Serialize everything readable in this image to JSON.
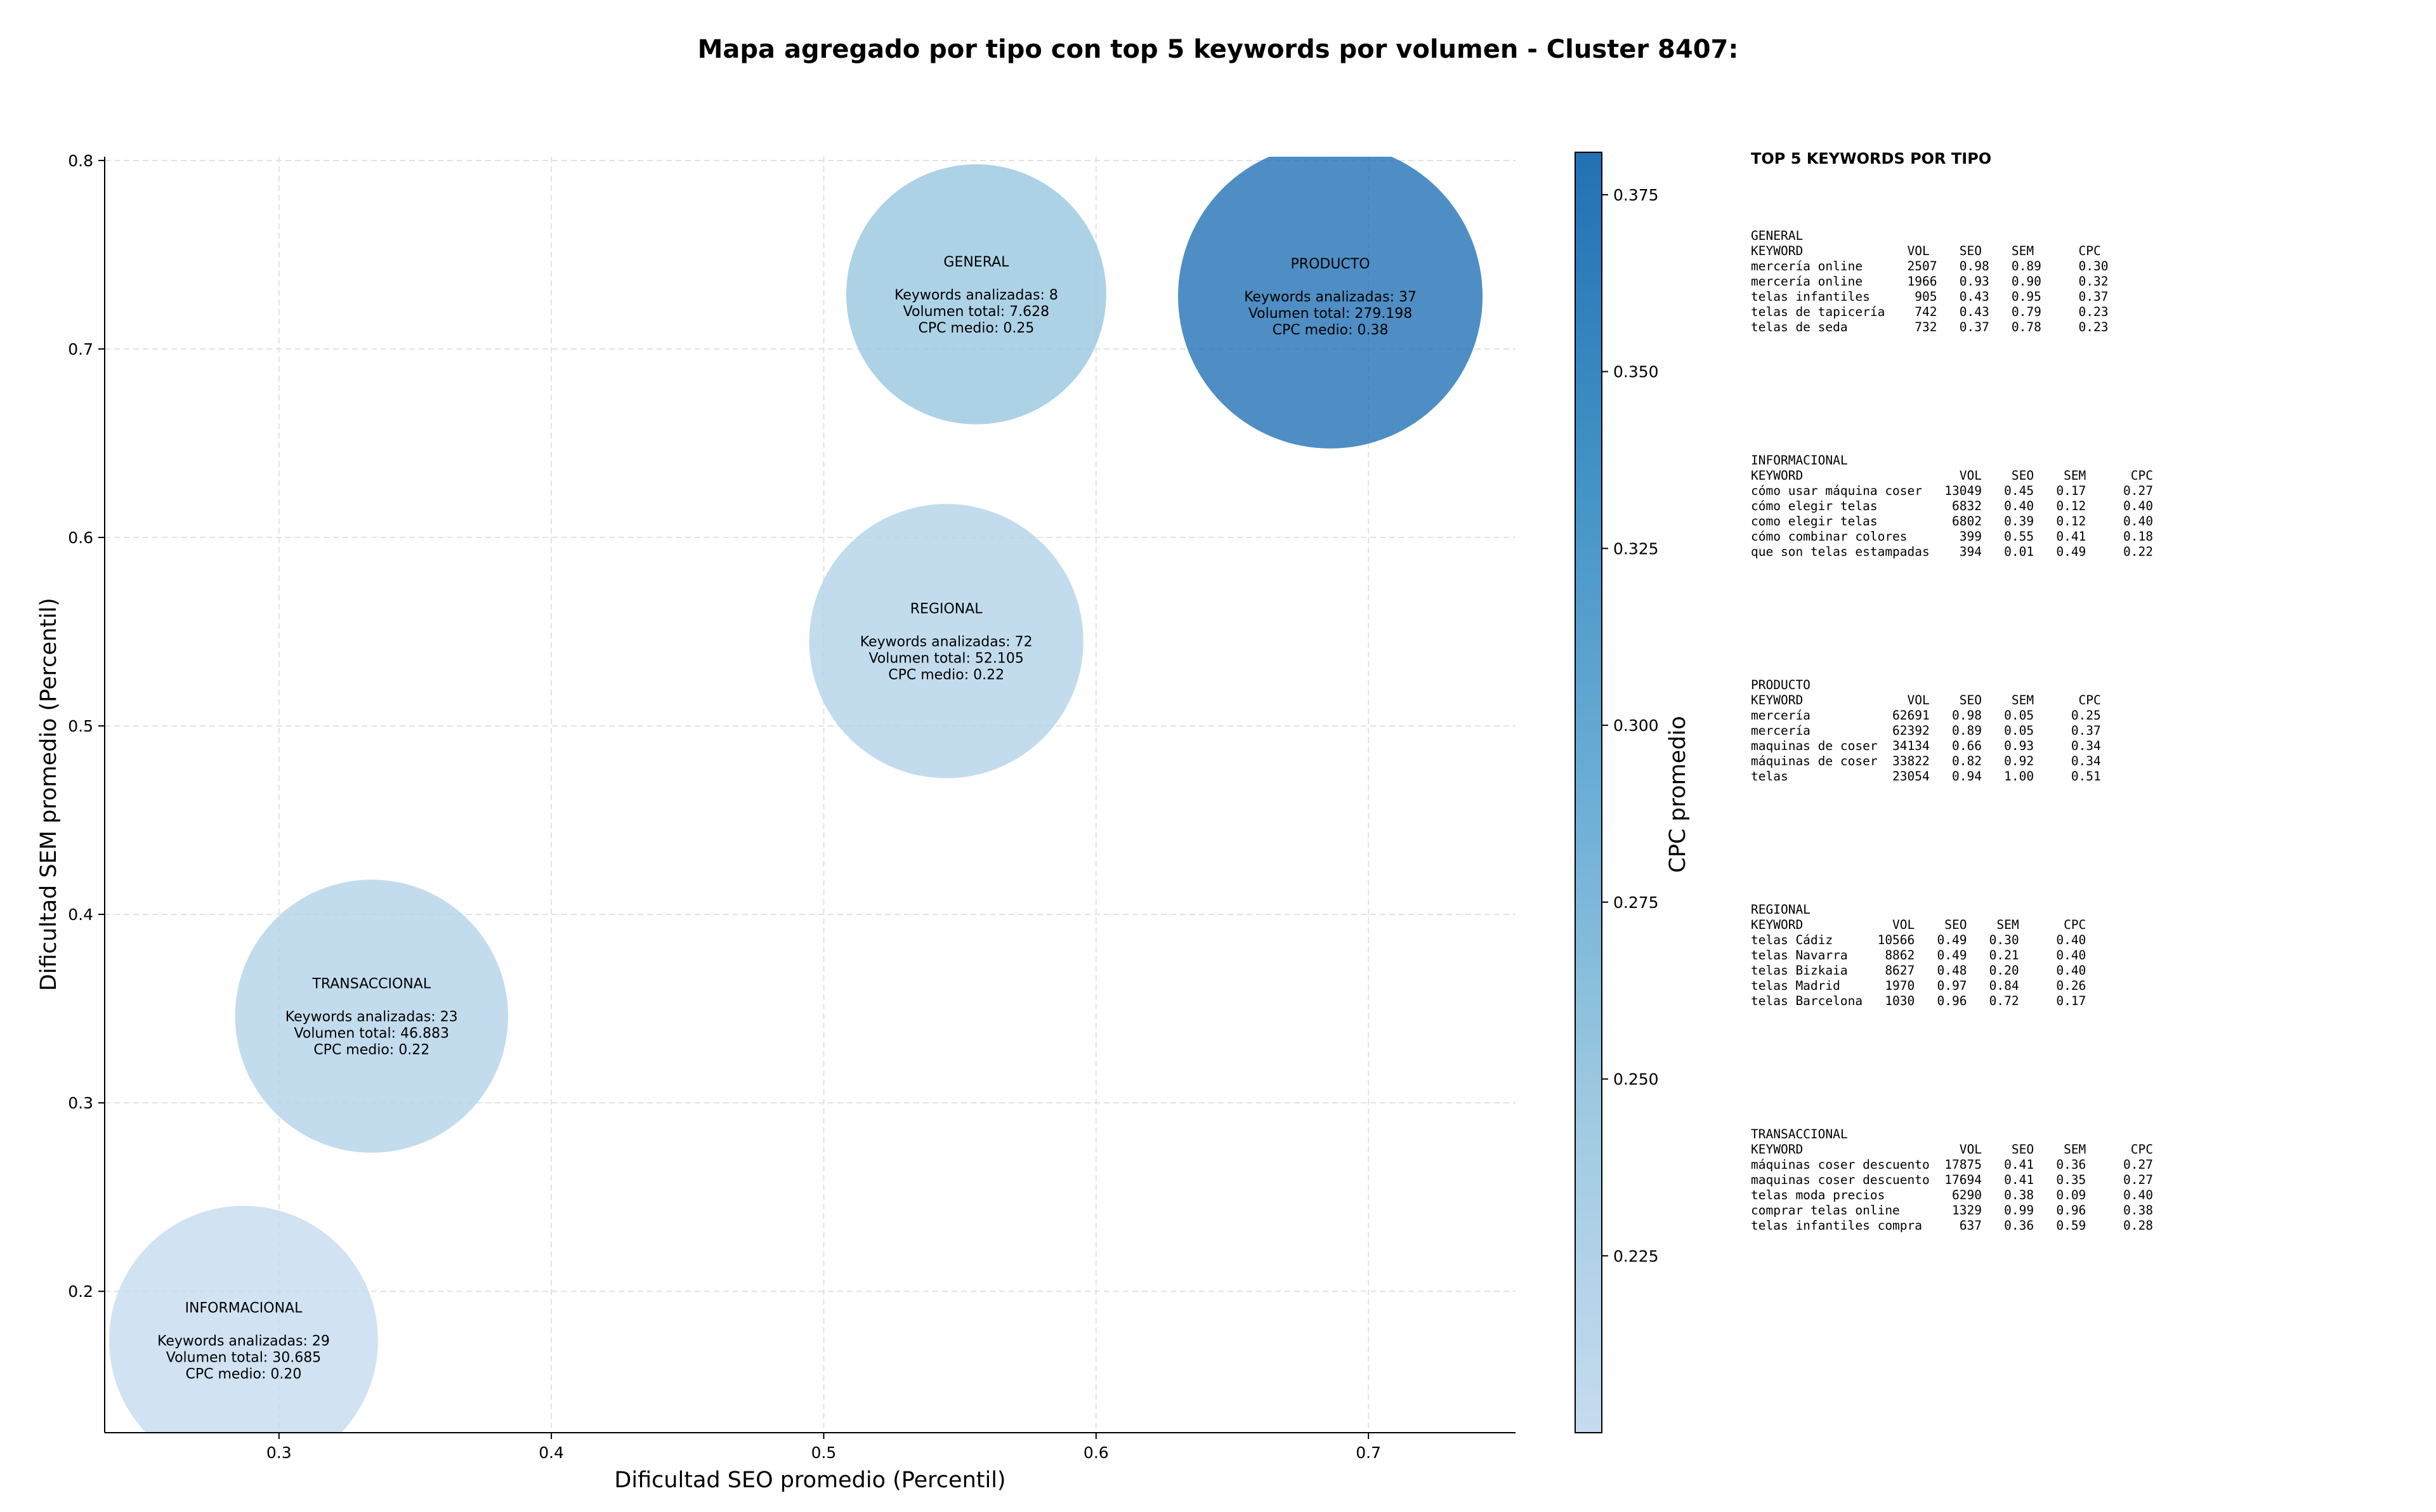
{
  "chart_data": {
    "type": "scatter",
    "title": "Mapa agregado por tipo con top 5 keywords por volumen - Cluster 8407:",
    "xlabel": "Dificultad SEO promedio (Percentil)",
    "ylabel": "Dificultad SEM promedio (Percentil)",
    "colorbar_label": "CPC promedio",
    "xlim": [
      0.236,
      0.754
    ],
    "ylim": [
      0.125,
      0.802
    ],
    "xticks": [
      "0.3",
      "0.4",
      "0.5",
      "0.6",
      "0.7"
    ],
    "yticks": [
      "0.2",
      "0.3",
      "0.4",
      "0.5",
      "0.6",
      "0.7",
      "0.8"
    ],
    "colorbar_range": [
      0.2,
      0.381
    ],
    "colorbar_ticks": [
      "0.225",
      "0.250",
      "0.275",
      "0.300",
      "0.325",
      "0.350",
      "0.375"
    ],
    "colormap": [
      "#c6dbef",
      "#9ecae1",
      "#6baed6",
      "#4292c6",
      "#2171b5"
    ],
    "grid": true,
    "points": [
      {
        "name": "GENERAL",
        "x": 0.556,
        "y": 0.729,
        "volume": 7628,
        "cpc": 0.25,
        "lines": [
          "Keywords analizadas: 8",
          "Volumen total: 7.628",
          "CPC medio: 0.25"
        ]
      },
      {
        "name": "PRODUCTO",
        "x": 0.686,
        "y": 0.728,
        "volume": 279198,
        "cpc": 0.38,
        "lines": [
          "Keywords analizadas: 37",
          "Volumen total: 279.198",
          "CPC medio: 0.38"
        ]
      },
      {
        "name": "REGIONAL",
        "x": 0.545,
        "y": 0.545,
        "volume": 52105,
        "cpc": 0.22,
        "lines": [
          "Keywords analizadas: 72",
          "Volumen total: 52.105",
          "CPC medio: 0.22"
        ]
      },
      {
        "name": "TRANSACCIONAL",
        "x": 0.334,
        "y": 0.346,
        "volume": 46883,
        "cpc": 0.22,
        "lines": [
          "Keywords analizadas: 23",
          "Volumen total: 46.883",
          "CPC medio: 0.22"
        ]
      },
      {
        "name": "INFORMACIONAL",
        "x": 0.287,
        "y": 0.174,
        "volume": 30685,
        "cpc": 0.2,
        "lines": [
          "Keywords analizadas: 29",
          "Volumen total: 30.685",
          "CPC medio: 0.20"
        ]
      }
    ]
  },
  "side_panel": {
    "title": "TOP 5 KEYWORDS POR TIPO",
    "tables": [
      {
        "text": "GENERAL\nKEYWORD              VOL    SEO    SEM      CPC\nmercería online      2507   0.98   0.89     0.30\nmercería online      1966   0.93   0.90     0.32\ntelas infantiles      905   0.43   0.95     0.37\ntelas de tapicería    742   0.43   0.79     0.23\ntelas de seda         732   0.37   0.78     0.23"
      },
      {
        "text": "INFORMACIONAL\nKEYWORD                     VOL    SEO    SEM      CPC\ncómo usar máquina coser   13049   0.45   0.17     0.27\ncómo elegir telas          6832   0.40   0.12     0.40\ncomo elegir telas          6802   0.39   0.12     0.40\ncómo combinar colores       399   0.55   0.41     0.18\nque son telas estampadas    394   0.01   0.49     0.22"
      },
      {
        "text": "PRODUCTO\nKEYWORD              VOL    SEO    SEM      CPC\nmercería           62691   0.98   0.05     0.25\nmercería           62392   0.89   0.05     0.37\nmaquinas de coser  34134   0.66   0.93     0.34\nmáquinas de coser  33822   0.82   0.92     0.34\ntelas              23054   0.94   1.00     0.51"
      },
      {
        "text": "REGIONAL\nKEYWORD            VOL    SEO    SEM      CPC\ntelas Cádiz      10566   0.49   0.30     0.40\ntelas Navarra     8862   0.49   0.21     0.40\ntelas Bizkaia     8627   0.48   0.20     0.40\ntelas Madrid      1970   0.97   0.84     0.26\ntelas Barcelona   1030   0.96   0.72     0.17"
      },
      {
        "text": "TRANSACCIONAL\nKEYWORD                     VOL    SEO    SEM      CPC\nmáquinas coser descuento  17875   0.41   0.36     0.27\nmaquinas coser descuento  17694   0.41   0.35     0.27\ntelas moda precios         6290   0.38   0.09     0.40\ncomprar telas online       1329   0.99   0.96     0.38\ntelas infantiles compra     637   0.36   0.59     0.28"
      }
    ]
  }
}
